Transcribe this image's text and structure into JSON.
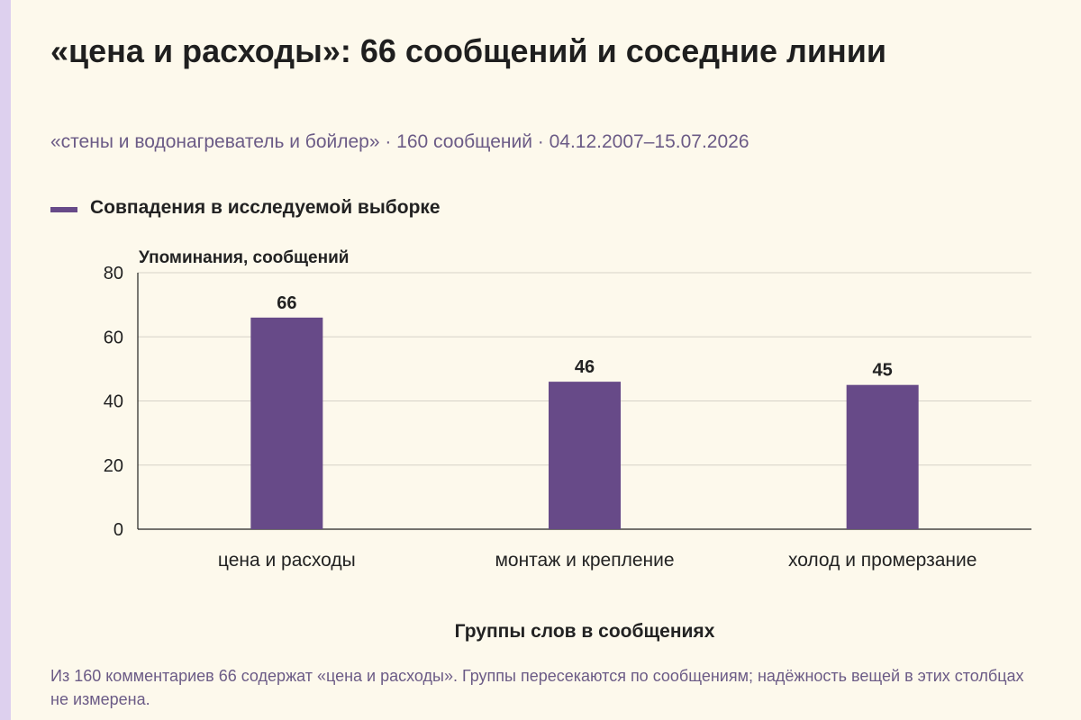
{
  "header": {
    "title": "«цена и расходы»: 66 сообщений и соседние линии",
    "subtitle": "«стены и водонагреватель и бойлер» · 160 сообщений · 04.12.2007–15.07.2026"
  },
  "legend": {
    "label": "Совпадения в исследуемой выборке",
    "color": "#674a88"
  },
  "note": "Из 160 комментариев 66 содержат «цена и расходы». Группы пересекаются по сообщениям; надёжность вещей в этих столбцах не измерена.",
  "chart_data": {
    "type": "bar",
    "categories": [
      "цена и расходы",
      "монтаж и крепление",
      "холод и промерзание"
    ],
    "series": [
      {
        "name": "Совпадения в исследуемой выборке",
        "values": [
          66,
          46,
          45
        ],
        "color": "#674a88"
      }
    ],
    "ylabel": "Упоминания, сообщений",
    "xlabel": "Группы слов в сообщениях",
    "ylim": [
      0,
      80
    ],
    "yticks": [
      0,
      20,
      40,
      60,
      80
    ],
    "grid": true,
    "data_labels": true
  }
}
